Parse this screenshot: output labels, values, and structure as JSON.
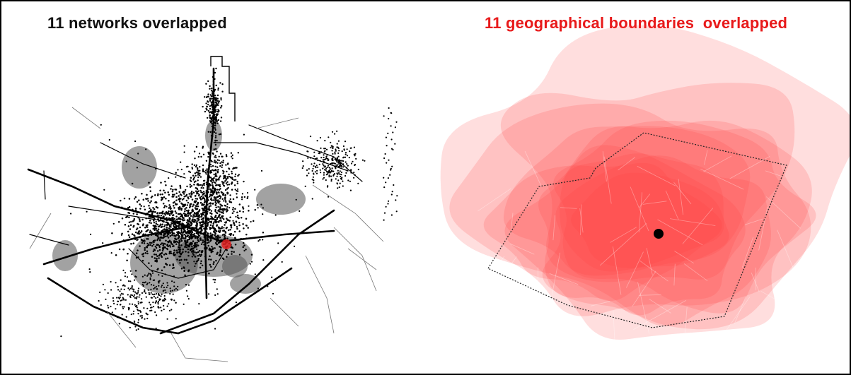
{
  "figure": {
    "left_panel": {
      "title": "11 networks overlapped",
      "title_color": "#111111",
      "network_color": "#000000",
      "density_color": "#555555",
      "center_marker_color": "#e02020"
    },
    "right_panel": {
      "title": "11 geographical boundaries  overlapped",
      "title_color": "#e8191a",
      "boundary_fill_color": "#ff3b3b",
      "center_marker_color": "#000000"
    }
  }
}
